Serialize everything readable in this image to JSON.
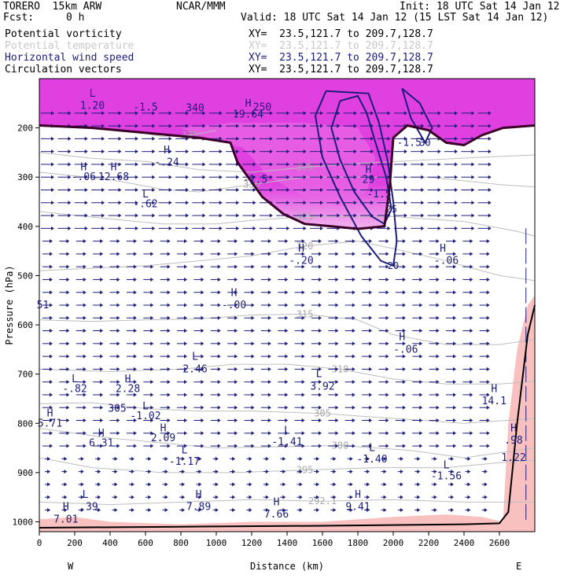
{
  "header": {
    "model": "TORERO  15km ARW",
    "center": "NCAR/MMM",
    "init": "Init: 18 UTC Sat 14 Jan 12",
    "fcst_label": "Fcst:",
    "fcst_value": "0 h",
    "valid": "Valid: 18 UTC Sat 14 Jan 12 (15 LST Sat 14 Jan 12)",
    "fields": [
      {
        "label": "Potential vorticity",
        "color": "#000000",
        "xy": "XY=  23.5,121.7 to 209.7,128.7"
      },
      {
        "label": "Potential temperature",
        "color": "#c8c8c8",
        "xy": "XY=  23.5,121.7 to 209.7,128.7"
      },
      {
        "label": "Horizontal wind speed",
        "color": "#1c1c7a",
        "xy": "XY=  23.5,121.7 to 209.7,128.7"
      },
      {
        "label": "Circulation vectors",
        "color": "#000000",
        "xy": "XY=  23.5,121.7 to 209.7,128.7"
      }
    ]
  },
  "chart_data": {
    "type": "cross-section",
    "xlabel": "Distance (km)",
    "ylabel": "Pressure (hPa)",
    "x_ticks": [
      0,
      200,
      400,
      600,
      800,
      1000,
      1200,
      1400,
      1600,
      1800,
      2000,
      2200,
      2400,
      2600
    ],
    "y_ticks": [
      200,
      300,
      400,
      500,
      600,
      700,
      800,
      900,
      1000
    ],
    "xlim": [
      0,
      2800
    ],
    "ylim": [
      1020,
      100
    ],
    "west_label": "W",
    "east_label": "E",
    "colors": {
      "pv_fill": "#e040e0",
      "pv_light": "#f3b5ee",
      "low_pv": "#f9c0c0",
      "theta": "#bdbdbd",
      "wind": "#1c1c7a",
      "pv_line": "#3a0028",
      "vec": "#1c1c7a"
    },
    "theta_contours": [
      {
        "label": "325",
        "points": [
          [
            0,
            250
          ],
          [
            300,
            262
          ],
          [
            600,
            268
          ],
          [
            900,
            285
          ],
          [
            1200,
            290
          ],
          [
            1500,
            280
          ],
          [
            1800,
            272
          ],
          [
            2200,
            265
          ],
          [
            2600,
            258
          ],
          [
            2800,
            255
          ]
        ]
      },
      {
        "label": "335",
        "points": [
          [
            500,
            205
          ],
          [
            700,
            218
          ],
          [
            850,
            215
          ],
          [
            1000,
            205
          ]
        ]
      },
      {
        "label": "330",
        "points": [
          [
            0,
            290
          ],
          [
            400,
            305
          ],
          [
            700,
            325
          ],
          [
            900,
            330
          ],
          [
            1200,
            315
          ],
          [
            1500,
            300
          ],
          [
            2200,
            300
          ],
          [
            2600,
            315
          ],
          [
            2800,
            320
          ]
        ]
      },
      {
        "label": "325",
        "points": [
          [
            0,
            370
          ],
          [
            400,
            385
          ],
          [
            700,
            395
          ],
          [
            1000,
            395
          ],
          [
            1200,
            388
          ],
          [
            1500,
            380
          ],
          [
            2000,
            380
          ],
          [
            2400,
            390
          ],
          [
            2700,
            410
          ],
          [
            2800,
            420
          ]
        ]
      },
      {
        "label": "320",
        "points": [
          [
            0,
            490
          ],
          [
            300,
            485
          ],
          [
            600,
            480
          ],
          [
            900,
            470
          ],
          [
            1200,
            460
          ],
          [
            1500,
            440
          ],
          [
            1800,
            430
          ],
          [
            2000,
            445
          ],
          [
            2300,
            470
          ],
          [
            2600,
            500
          ],
          [
            2800,
            510
          ]
        ]
      },
      {
        "label": "315",
        "points": [
          [
            0,
            590
          ],
          [
            300,
            593
          ],
          [
            600,
            590
          ],
          [
            900,
            588
          ],
          [
            1200,
            580
          ],
          [
            1500,
            578
          ],
          [
            1800,
            590
          ],
          [
            2000,
            620
          ],
          [
            2300,
            640
          ],
          [
            2600,
            640
          ],
          [
            2800,
            630
          ]
        ]
      },
      {
        "label": "310",
        "points": [
          [
            0,
            690
          ],
          [
            400,
            695
          ],
          [
            800,
            690
          ],
          [
            1100,
            680
          ],
          [
            1400,
            680
          ],
          [
            1700,
            690
          ],
          [
            2000,
            710
          ],
          [
            2300,
            720
          ],
          [
            2600,
            720
          ],
          [
            2800,
            715
          ]
        ]
      },
      {
        "label": "305",
        "points": [
          [
            0,
            760
          ],
          [
            300,
            758
          ],
          [
            600,
            770
          ],
          [
            900,
            775
          ],
          [
            1200,
            775
          ],
          [
            1600,
            780
          ],
          [
            2000,
            790
          ],
          [
            2400,
            800
          ],
          [
            2600,
            795
          ],
          [
            2800,
            790
          ]
        ]
      },
      {
        "label": "300",
        "points": [
          [
            0,
            810
          ],
          [
            400,
            830
          ],
          [
            700,
            840
          ],
          [
            1000,
            850
          ],
          [
            1300,
            848
          ],
          [
            1700,
            845
          ],
          [
            2100,
            855
          ],
          [
            2400,
            870
          ],
          [
            2600,
            860
          ],
          [
            2800,
            850
          ]
        ]
      },
      {
        "label": "295",
        "points": [
          [
            0,
            870
          ],
          [
            300,
            890
          ],
          [
            700,
            900
          ],
          [
            1100,
            900
          ],
          [
            1500,
            895
          ],
          [
            1900,
            890
          ],
          [
            2300,
            890
          ],
          [
            2600,
            880
          ],
          [
            2800,
            875
          ]
        ]
      },
      {
        "label": "292.1",
        "points": [
          [
            0,
            960
          ],
          [
            400,
            965
          ],
          [
            800,
            960
          ],
          [
            1200,
            955
          ],
          [
            1600,
            958
          ],
          [
            2000,
            955
          ],
          [
            2400,
            960
          ],
          [
            2800,
            960
          ]
        ]
      }
    ],
    "wind_contours": [
      {
        "label": "25",
        "points": [
          [
            1700,
            145
          ],
          [
            1650,
            200
          ],
          [
            1700,
            265
          ],
          [
            1780,
            330
          ],
          [
            1880,
            380
          ],
          [
            1950,
            395
          ],
          [
            1990,
            365
          ],
          [
            1960,
            300
          ],
          [
            1900,
            230
          ],
          [
            1850,
            170
          ],
          [
            1800,
            135
          ],
          [
            1700,
            145
          ]
        ]
      },
      {
        "label": "20",
        "points": [
          [
            1620,
            125
          ],
          [
            1560,
            175
          ],
          [
            1600,
            260
          ],
          [
            1700,
            340
          ],
          [
            1820,
            420
          ],
          [
            1930,
            470
          ],
          [
            2000,
            480
          ],
          [
            2020,
            430
          ],
          [
            2000,
            350
          ],
          [
            1970,
            270
          ],
          [
            1920,
            190
          ],
          [
            1860,
            130
          ],
          [
            1620,
            125
          ]
        ]
      },
      {
        "label": "30",
        "points": [
          [
            2050,
            120
          ],
          [
            2150,
            150
          ],
          [
            2220,
            200
          ],
          [
            2180,
            230
          ],
          [
            2100,
            180
          ],
          [
            2050,
            120
          ]
        ]
      }
    ],
    "pv_line": [
      [
        0,
        195
      ],
      [
        300,
        200
      ],
      [
        600,
        210
      ],
      [
        900,
        220
      ],
      [
        1080,
        230
      ],
      [
        1120,
        270
      ],
      [
        1180,
        300
      ],
      [
        1260,
        340
      ],
      [
        1380,
        375
      ],
      [
        1500,
        395
      ],
      [
        1650,
        400
      ],
      [
        1800,
        405
      ],
      [
        1950,
        400
      ],
      [
        1980,
        320
      ],
      [
        2000,
        220
      ],
      [
        2080,
        195
      ],
      [
        2200,
        205
      ],
      [
        2300,
        230
      ],
      [
        2400,
        235
      ],
      [
        2500,
        215
      ],
      [
        2620,
        200
      ],
      [
        2800,
        195
      ]
    ],
    "annotations": [
      {
        "text": "L",
        "x": 300,
        "y": 130
      },
      {
        "text": "1.20",
        "x": 300,
        "y": 155
      },
      {
        "text": "-1.5",
        "x": 600,
        "y": 158
      },
      {
        "text": "H",
        "x": 1180,
        "y": 150
      },
      {
        "text": "19.64",
        "x": 1180,
        "y": 173
      },
      {
        "text": "250",
        "x": 1260,
        "y": 158
      },
      {
        "text": "340",
        "x": 880,
        "y": 160
      },
      {
        "text": "H",
        "x": 720,
        "y": 245
      },
      {
        "text": "-.24",
        "x": 720,
        "y": 270
      },
      {
        "text": "H",
        "x": 420,
        "y": 280
      },
      {
        "text": "12.68",
        "x": 420,
        "y": 300
      },
      {
        "text": "H",
        "x": 250,
        "y": 280
      },
      {
        "text": "-.06",
        "x": 250,
        "y": 300
      },
      {
        "text": "L",
        "x": 600,
        "y": 335
      },
      {
        "text": "-.62",
        "x": 600,
        "y": 355
      },
      {
        "text": "-1.5",
        "x": 1220,
        "y": 305
      },
      {
        "text": "H",
        "x": 1860,
        "y": 285
      },
      {
        "text": "29",
        "x": 1860,
        "y": 305
      },
      {
        "text": "-1.5",
        "x": 1920,
        "y": 335
      },
      {
        "text": "-1.5",
        "x": 2090,
        "y": 230
      },
      {
        "text": "H",
        "x": 1480,
        "y": 445
      },
      {
        "text": "-.20",
        "x": 1480,
        "y": 470
      },
      {
        "text": "H",
        "x": 2280,
        "y": 445
      },
      {
        "text": "-.06",
        "x": 2300,
        "y": 470
      },
      {
        "text": "H",
        "x": 1100,
        "y": 535
      },
      {
        "text": "-.00",
        "x": 1100,
        "y": 560
      },
      {
        "text": "51",
        "x": 20,
        "y": 560
      },
      {
        "text": "H",
        "x": 2050,
        "y": 625
      },
      {
        "text": "-.06",
        "x": 2070,
        "y": 650
      },
      {
        "text": "L",
        "x": 880,
        "y": 665
      },
      {
        "text": "2.46",
        "x": 880,
        "y": 690
      },
      {
        "text": "L",
        "x": 1580,
        "y": 700
      },
      {
        "text": "3.92",
        "x": 1600,
        "y": 725
      },
      {
        "text": "L",
        "x": 200,
        "y": 710
      },
      {
        "text": "-.82",
        "x": 200,
        "y": 730
      },
      {
        "text": "H",
        "x": 500,
        "y": 710
      },
      {
        "text": "2.28",
        "x": 500,
        "y": 730
      },
      {
        "text": "L",
        "x": 600,
        "y": 765
      },
      {
        "text": "-1.02",
        "x": 600,
        "y": 785
      },
      {
        "text": "H",
        "x": 700,
        "y": 810
      },
      {
        "text": "2.09",
        "x": 700,
        "y": 830
      },
      {
        "text": "H",
        "x": 2570,
        "y": 730
      },
      {
        "text": "14.1",
        "x": 2570,
        "y": 755
      },
      {
        "text": "H",
        "x": 60,
        "y": 780
      },
      {
        "text": "5.71",
        "x": 60,
        "y": 800
      },
      {
        "text": "H",
        "x": 350,
        "y": 820
      },
      {
        "text": "6.31",
        "x": 350,
        "y": 840
      },
      {
        "text": "L",
        "x": 1400,
        "y": 815
      },
      {
        "text": "-1.41",
        "x": 1400,
        "y": 838
      },
      {
        "text": "H",
        "x": 2680,
        "y": 810
      },
      {
        "text": ".98",
        "x": 2680,
        "y": 835
      },
      {
        "text": "L",
        "x": 820,
        "y": 855
      },
      {
        "text": "-1.17",
        "x": 820,
        "y": 878
      },
      {
        "text": "L",
        "x": 1880,
        "y": 850
      },
      {
        "text": "-1.40",
        "x": 1880,
        "y": 873
      },
      {
        "text": "1.22",
        "x": 2680,
        "y": 870
      },
      {
        "text": "L",
        "x": 2300,
        "y": 885
      },
      {
        "text": "-1.56",
        "x": 2300,
        "y": 907
      },
      {
        "text": "L",
        "x": 260,
        "y": 945
      },
      {
        "text": ".39",
        "x": 280,
        "y": 970
      },
      {
        "text": "H",
        "x": 900,
        "y": 945
      },
      {
        "text": "7.89",
        "x": 900,
        "y": 970
      },
      {
        "text": "H",
        "x": 1800,
        "y": 945
      },
      {
        "text": "9.41",
        "x": 1800,
        "y": 970
      },
      {
        "text": "H",
        "x": 1340,
        "y": 960
      },
      {
        "text": "7.66",
        "x": 1340,
        "y": 985
      },
      {
        "text": "H",
        "x": 150,
        "y": 970
      },
      {
        "text": "7.01",
        "x": 150,
        "y": 995
      },
      {
        "text": "305",
        "x": 440,
        "y": 770
      }
    ]
  }
}
